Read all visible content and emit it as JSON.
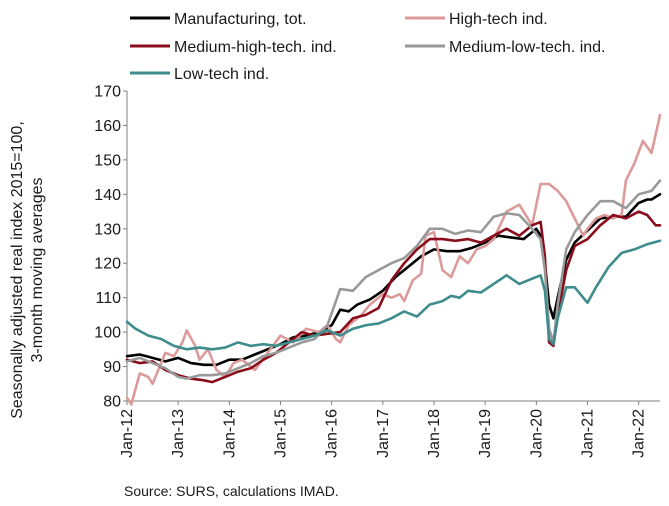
{
  "source_note": "Source: SURS, calculations IMAD.",
  "chart_data": {
    "type": "line",
    "ylabel_lines": [
      "Seasonally adjusted real index 2015=100,",
      "3-month moving averages"
    ],
    "xlabel": "",
    "ylim": [
      80,
      170
    ],
    "y_ticks": [
      80,
      90,
      100,
      110,
      120,
      130,
      140,
      150,
      160,
      170
    ],
    "x_range": [
      "2012-01",
      "2022-06"
    ],
    "x_tick_labels": [
      "Jan-12",
      "Jan-13",
      "Jan-14",
      "Jan-15",
      "Jan-16",
      "Jan-17",
      "Jan-18",
      "Jan-19",
      "Jan-20",
      "Jan-21",
      "Jan-22"
    ],
    "grid": false,
    "legend_position": "top",
    "series": [
      {
        "name": "Manufacturing, tot.",
        "color": "#000000",
        "points": [
          [
            "2012-01",
            93
          ],
          [
            "2012-04",
            93.5
          ],
          [
            "2012-07",
            92.5
          ],
          [
            "2012-10",
            91.5
          ],
          [
            "2013-01",
            92.5
          ],
          [
            "2013-04",
            91
          ],
          [
            "2013-07",
            90.5
          ],
          [
            "2013-10",
            90.5
          ],
          [
            "2014-01",
            92
          ],
          [
            "2014-04",
            92
          ],
          [
            "2014-07",
            93.5
          ],
          [
            "2014-10",
            95
          ],
          [
            "2015-01",
            96.5
          ],
          [
            "2015-04",
            98.5
          ],
          [
            "2015-07",
            99
          ],
          [
            "2015-10",
            100
          ],
          [
            "2016-01",
            102
          ],
          [
            "2016-03",
            106.5
          ],
          [
            "2016-05",
            106
          ],
          [
            "2016-07",
            108
          ],
          [
            "2016-10",
            109.5
          ],
          [
            "2017-01",
            112
          ],
          [
            "2017-04",
            116
          ],
          [
            "2017-07",
            119
          ],
          [
            "2017-10",
            122
          ],
          [
            "2018-01",
            124
          ],
          [
            "2018-04",
            123.5
          ],
          [
            "2018-07",
            123.5
          ],
          [
            "2018-10",
            124.5
          ],
          [
            "2019-01",
            126
          ],
          [
            "2019-04",
            128
          ],
          [
            "2019-07",
            127.5
          ],
          [
            "2019-10",
            127
          ],
          [
            "2020-01",
            130
          ],
          [
            "2020-02",
            128
          ],
          [
            "2020-03",
            120
          ],
          [
            "2020-04",
            108
          ],
          [
            "2020-05",
            104
          ],
          [
            "2020-06",
            110
          ],
          [
            "2020-08",
            121
          ],
          [
            "2020-10",
            126
          ],
          [
            "2021-01",
            129.5
          ],
          [
            "2021-04",
            133
          ],
          [
            "2021-07",
            133.5
          ],
          [
            "2021-10",
            133.5
          ],
          [
            "2022-01",
            137.5
          ],
          [
            "2022-03",
            138.5
          ],
          [
            "2022-04",
            138.5
          ],
          [
            "2022-06",
            140
          ]
        ]
      },
      {
        "name": "High-tech ind.",
        "color": "#dc9a9a",
        "points": [
          [
            "2012-01",
            81
          ],
          [
            "2012-02",
            79
          ],
          [
            "2012-04",
            88
          ],
          [
            "2012-06",
            87
          ],
          [
            "2012-07",
            85
          ],
          [
            "2012-10",
            94
          ],
          [
            "2012-12",
            93
          ],
          [
            "2013-02",
            97
          ],
          [
            "2013-03",
            100.5
          ],
          [
            "2013-05",
            96
          ],
          [
            "2013-06",
            92
          ],
          [
            "2013-08",
            95
          ],
          [
            "2013-10",
            89
          ],
          [
            "2013-12",
            87
          ],
          [
            "2014-02",
            91
          ],
          [
            "2014-04",
            92
          ],
          [
            "2014-07",
            89
          ],
          [
            "2014-10",
            94
          ],
          [
            "2015-01",
            99
          ],
          [
            "2015-04",
            97
          ],
          [
            "2015-07",
            101
          ],
          [
            "2015-10",
            100
          ],
          [
            "2015-12",
            102
          ],
          [
            "2016-02",
            98
          ],
          [
            "2016-03",
            97
          ],
          [
            "2016-05",
            102
          ],
          [
            "2016-08",
            105
          ],
          [
            "2016-10",
            108
          ],
          [
            "2017-01",
            111
          ],
          [
            "2017-03",
            110
          ],
          [
            "2017-05",
            111
          ],
          [
            "2017-06",
            109
          ],
          [
            "2017-08",
            115
          ],
          [
            "2017-10",
            117
          ],
          [
            "2017-11",
            128
          ],
          [
            "2018-01",
            129
          ],
          [
            "2018-03",
            118
          ],
          [
            "2018-05",
            116
          ],
          [
            "2018-07",
            122
          ],
          [
            "2018-09",
            120
          ],
          [
            "2018-11",
            124
          ],
          [
            "2019-01",
            125
          ],
          [
            "2019-03",
            127
          ],
          [
            "2019-06",
            135
          ],
          [
            "2019-09",
            137
          ],
          [
            "2019-12",
            131
          ],
          [
            "2020-02",
            143
          ],
          [
            "2020-04",
            143
          ],
          [
            "2020-06",
            141
          ],
          [
            "2020-08",
            138
          ],
          [
            "2020-10",
            133
          ],
          [
            "2020-12",
            128
          ],
          [
            "2021-01",
            130
          ],
          [
            "2021-03",
            133
          ],
          [
            "2021-05",
            134
          ],
          [
            "2021-07",
            133
          ],
          [
            "2021-09",
            134
          ],
          [
            "2021-10",
            144
          ],
          [
            "2021-12",
            149
          ],
          [
            "2022-02",
            155.5
          ],
          [
            "2022-04",
            152
          ],
          [
            "2022-06",
            163
          ]
        ]
      },
      {
        "name": "Medium-high-tech. ind.",
        "color": "#8b0d1c",
        "points": [
          [
            "2012-01",
            92
          ],
          [
            "2012-04",
            91
          ],
          [
            "2012-07",
            91.5
          ],
          [
            "2012-10",
            89
          ],
          [
            "2013-01",
            87.5
          ],
          [
            "2013-04",
            86.5
          ],
          [
            "2013-07",
            86
          ],
          [
            "2013-09",
            85.5
          ],
          [
            "2013-12",
            87
          ],
          [
            "2014-03",
            88.5
          ],
          [
            "2014-06",
            89.5
          ],
          [
            "2014-09",
            92
          ],
          [
            "2014-12",
            94
          ],
          [
            "2015-03",
            97
          ],
          [
            "2015-06",
            100
          ],
          [
            "2015-09",
            99
          ],
          [
            "2015-12",
            99.5
          ],
          [
            "2016-03",
            100
          ],
          [
            "2016-06",
            104
          ],
          [
            "2016-09",
            105
          ],
          [
            "2016-12",
            107
          ],
          [
            "2017-03",
            115
          ],
          [
            "2017-06",
            120
          ],
          [
            "2017-09",
            124
          ],
          [
            "2017-12",
            127
          ],
          [
            "2018-03",
            127
          ],
          [
            "2018-06",
            126.5
          ],
          [
            "2018-09",
            127
          ],
          [
            "2018-12",
            126
          ],
          [
            "2019-03",
            128
          ],
          [
            "2019-06",
            130
          ],
          [
            "2019-09",
            128
          ],
          [
            "2019-12",
            131
          ],
          [
            "2020-02",
            132
          ],
          [
            "2020-03",
            122
          ],
          [
            "2020-04",
            97
          ],
          [
            "2020-05",
            96
          ],
          [
            "2020-06",
            105
          ],
          [
            "2020-08",
            118
          ],
          [
            "2020-10",
            125
          ],
          [
            "2021-01",
            127
          ],
          [
            "2021-04",
            131
          ],
          [
            "2021-07",
            134
          ],
          [
            "2021-10",
            133
          ],
          [
            "2022-01",
            135
          ],
          [
            "2022-03",
            134
          ],
          [
            "2022-05",
            131
          ],
          [
            "2022-06",
            131
          ]
        ]
      },
      {
        "name": "Medium-low-tech. ind.",
        "color": "#999999",
        "points": [
          [
            "2012-01",
            91.5
          ],
          [
            "2012-04",
            92.5
          ],
          [
            "2012-07",
            91
          ],
          [
            "2012-10",
            89.5
          ],
          [
            "2013-01",
            87
          ],
          [
            "2013-03",
            86.5
          ],
          [
            "2013-06",
            87.5
          ],
          [
            "2013-09",
            87.5
          ],
          [
            "2013-12",
            88
          ],
          [
            "2014-03",
            89.5
          ],
          [
            "2014-06",
            91
          ],
          [
            "2014-09",
            93
          ],
          [
            "2014-12",
            94
          ],
          [
            "2015-03",
            95.5
          ],
          [
            "2015-06",
            97
          ],
          [
            "2015-09",
            98
          ],
          [
            "2015-12",
            102
          ],
          [
            "2016-03",
            112.5
          ],
          [
            "2016-06",
            112
          ],
          [
            "2016-09",
            116
          ],
          [
            "2016-12",
            118
          ],
          [
            "2017-03",
            120
          ],
          [
            "2017-06",
            121.5
          ],
          [
            "2017-09",
            125
          ],
          [
            "2017-12",
            130
          ],
          [
            "2018-03",
            130
          ],
          [
            "2018-06",
            128.5
          ],
          [
            "2018-09",
            129.5
          ],
          [
            "2018-12",
            129
          ],
          [
            "2019-03",
            133.5
          ],
          [
            "2019-06",
            134.5
          ],
          [
            "2019-09",
            134
          ],
          [
            "2019-12",
            130
          ],
          [
            "2020-02",
            127
          ],
          [
            "2020-03",
            118
          ],
          [
            "2020-04",
            101
          ],
          [
            "2020-05",
            97
          ],
          [
            "2020-06",
            108
          ],
          [
            "2020-08",
            124
          ],
          [
            "2020-10",
            129
          ],
          [
            "2021-01",
            134
          ],
          [
            "2021-04",
            138
          ],
          [
            "2021-07",
            138
          ],
          [
            "2021-10",
            136
          ],
          [
            "2022-01",
            140
          ],
          [
            "2022-04",
            141
          ],
          [
            "2022-06",
            144
          ]
        ]
      },
      {
        "name": "Low-tech ind.",
        "color": "#3f8c8c",
        "points": [
          [
            "2012-01",
            103
          ],
          [
            "2012-03",
            101
          ],
          [
            "2012-06",
            99
          ],
          [
            "2012-09",
            98
          ],
          [
            "2012-12",
            96
          ],
          [
            "2013-03",
            95
          ],
          [
            "2013-06",
            95.5
          ],
          [
            "2013-09",
            95
          ],
          [
            "2013-12",
            95.5
          ],
          [
            "2014-03",
            97
          ],
          [
            "2014-06",
            96
          ],
          [
            "2014-09",
            96.5
          ],
          [
            "2014-12",
            96
          ],
          [
            "2015-03",
            97
          ],
          [
            "2015-06",
            98
          ],
          [
            "2015-09",
            99
          ],
          [
            "2015-12",
            100.5
          ],
          [
            "2016-03",
            99
          ],
          [
            "2016-06",
            101
          ],
          [
            "2016-09",
            102
          ],
          [
            "2016-12",
            102.5
          ],
          [
            "2017-03",
            104
          ],
          [
            "2017-06",
            106
          ],
          [
            "2017-09",
            104.5
          ],
          [
            "2017-12",
            108
          ],
          [
            "2018-03",
            109
          ],
          [
            "2018-05",
            110.5
          ],
          [
            "2018-07",
            110
          ],
          [
            "2018-09",
            112
          ],
          [
            "2018-12",
            111.5
          ],
          [
            "2019-03",
            114
          ],
          [
            "2019-06",
            116.5
          ],
          [
            "2019-09",
            114
          ],
          [
            "2019-12",
            115.5
          ],
          [
            "2020-02",
            116.5
          ],
          [
            "2020-03",
            112
          ],
          [
            "2020-04",
            98
          ],
          [
            "2020-05",
            96.5
          ],
          [
            "2020-06",
            104
          ],
          [
            "2020-08",
            113
          ],
          [
            "2020-10",
            113
          ],
          [
            "2021-01",
            108.5
          ],
          [
            "2021-03",
            113
          ],
          [
            "2021-06",
            119
          ],
          [
            "2021-09",
            123
          ],
          [
            "2021-12",
            124
          ],
          [
            "2022-03",
            125.5
          ],
          [
            "2022-06",
            126.5
          ]
        ]
      }
    ]
  }
}
